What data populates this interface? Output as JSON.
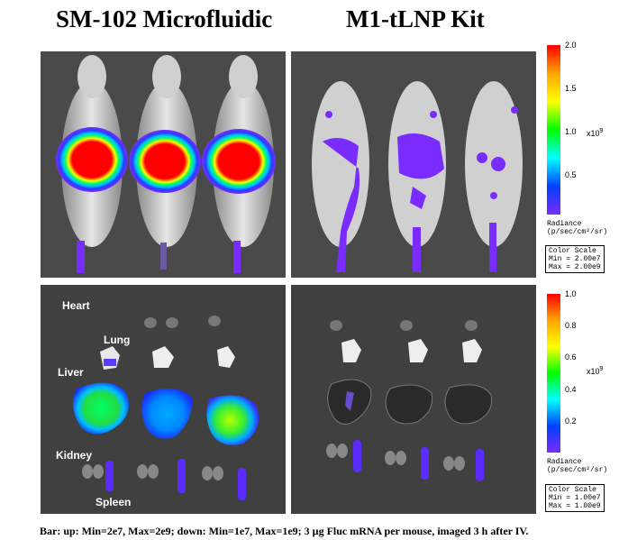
{
  "titles": {
    "left": "SM-102 Microfluidic",
    "right": "M1-tLNP Kit"
  },
  "top_scale": {
    "ticks": [
      "2.0",
      "1.5",
      "1.0",
      "0.5"
    ],
    "exponent": "x10",
    "exponent_power": "9",
    "unit_label": "Radiance",
    "unit": "(p/sec/cm²/sr)",
    "box_title": "Color Scale",
    "box_min": "Min = 2.00e7",
    "box_max": "Max = 2.00e9"
  },
  "bottom_scale": {
    "ticks": [
      "1.0",
      "0.8",
      "0.6",
      "0.4",
      "0.2"
    ],
    "exponent": "x10",
    "exponent_power": "9",
    "unit_label": "Radiance",
    "unit": "(p/sec/cm²/sr)",
    "box_title": "Color Scale",
    "box_min": "Min = 1.00e7",
    "box_max": "Max = 1.00e9"
  },
  "organs": {
    "heart": "Heart",
    "lung": "Lung",
    "liver": "Liver",
    "kidney": "Kidney",
    "spleen": "Spleen"
  },
  "caption": "Bar: up: Min=2e7, Max=2e9; down: Min=1e7, Max=1e9; 3 µg Fluc mRNA per mouse, imaged 3 h after IV.",
  "colors": {
    "hot": "#ff0000",
    "warm": "#ffff00",
    "mid": "#00ff00",
    "cool": "#00c0ff",
    "low": "#7a2cff"
  }
}
